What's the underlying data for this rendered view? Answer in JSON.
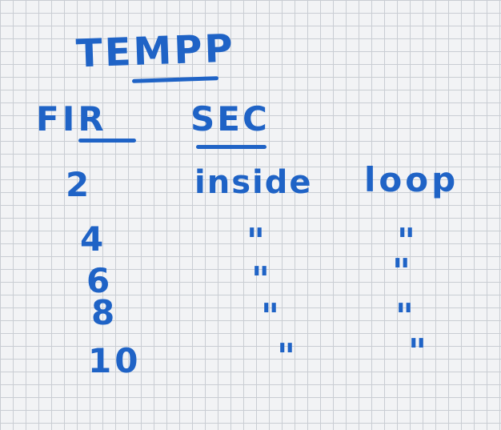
{
  "title": "TEMPP",
  "headers": {
    "fir": "FIR",
    "sec": "SEC"
  },
  "rows": [
    {
      "fir": "2",
      "sec": "inside",
      "extra": "loop"
    },
    {
      "fir": "4",
      "sec": "\"",
      "extra": "\""
    },
    {
      "fir": "6",
      "sec": "\"",
      "extra": "\""
    },
    {
      "fir": "8",
      "sec": "\"",
      "extra": "\""
    },
    {
      "fir": "10",
      "sec": "\"",
      "extra": "\""
    }
  ],
  "ink_color": "#1f63c6",
  "grid_color": "#c9cdd3",
  "background_color": "#f2f3f5"
}
